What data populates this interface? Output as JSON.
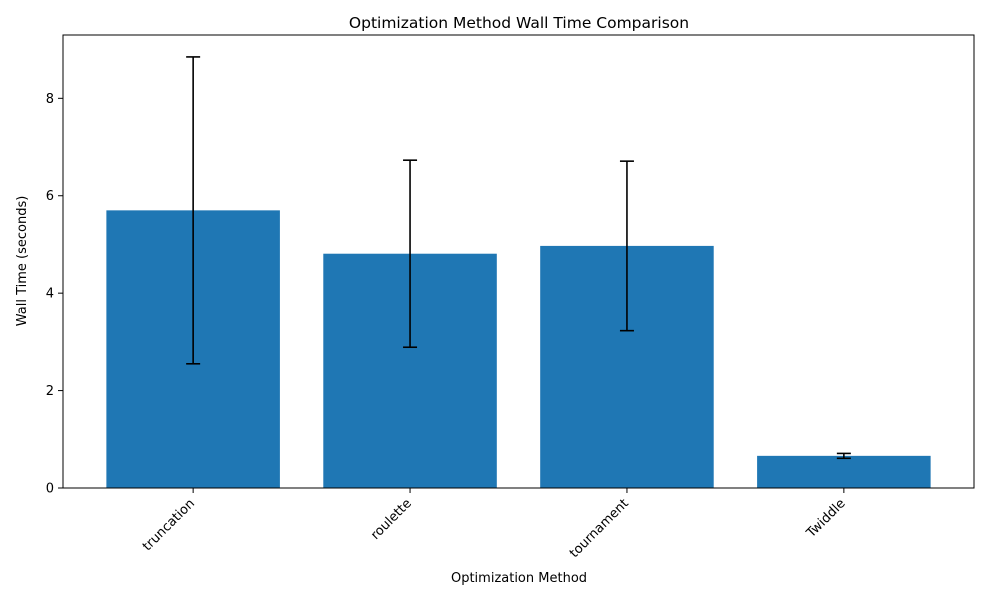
{
  "chart_data": {
    "type": "bar",
    "title": "Optimization Method Wall Time Comparison",
    "xlabel": "Optimization Method",
    "ylabel": "Wall Time (seconds)",
    "categories": [
      "truncation",
      "roulette",
      "tournament",
      "Twiddle"
    ],
    "values": [
      5.7,
      4.81,
      4.97,
      0.66
    ],
    "errors": [
      3.15,
      1.92,
      1.74,
      0.05
    ],
    "ylim": [
      0,
      9.3
    ],
    "yticks": [
      0,
      2,
      4,
      6,
      8
    ],
    "ytick_labels": [
      "0",
      "2",
      "4",
      "6",
      "8"
    ],
    "bar_color": "#1f77b4",
    "error_color": "#000000",
    "grid": false,
    "xtick_rotation_deg": 45
  }
}
